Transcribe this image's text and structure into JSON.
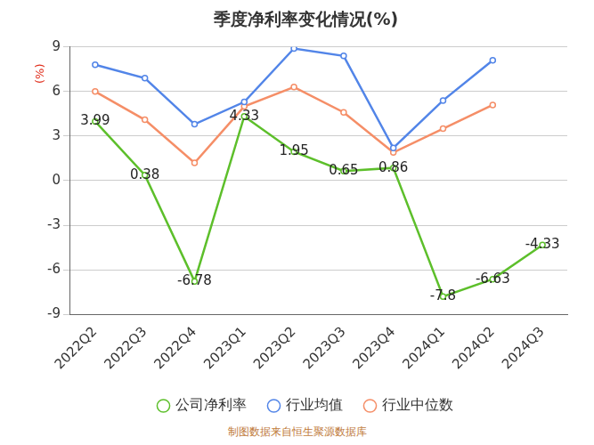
{
  "chart_data": {
    "type": "line",
    "title": "季度净利率变化情况(%)",
    "ylabel": "(%)",
    "source": "制图数据来自恒生聚源数据库",
    "categories": [
      "2022Q2",
      "2022Q3",
      "2022Q4",
      "2023Q1",
      "2023Q2",
      "2023Q3",
      "2023Q4",
      "2024Q1",
      "2024Q2",
      "2024Q3"
    ],
    "series": [
      {
        "name": "公司净利率",
        "color": "#5dbf2b",
        "marker": "circle",
        "data_labels": true,
        "values": [
          3.99,
          0.38,
          -6.78,
          4.33,
          1.95,
          0.65,
          0.86,
          -7.8,
          -6.63,
          -4.33
        ]
      },
      {
        "name": "行业均值",
        "color": "#5285e8",
        "marker": "circle",
        "values": [
          7.8,
          6.9,
          3.8,
          5.3,
          8.9,
          8.4,
          2.2,
          5.4,
          8.1,
          null
        ]
      },
      {
        "name": "行业中位数",
        "color": "#f58e67",
        "marker": "circle",
        "values": [
          6.0,
          4.1,
          1.2,
          5.0,
          6.3,
          4.6,
          1.9,
          3.5,
          5.1,
          null
        ]
      }
    ],
    "ylim": [
      -9,
      9
    ],
    "yticks": [
      -9,
      -6,
      -3,
      0,
      3,
      6,
      9
    ],
    "grid": true,
    "legend": "bottom"
  }
}
